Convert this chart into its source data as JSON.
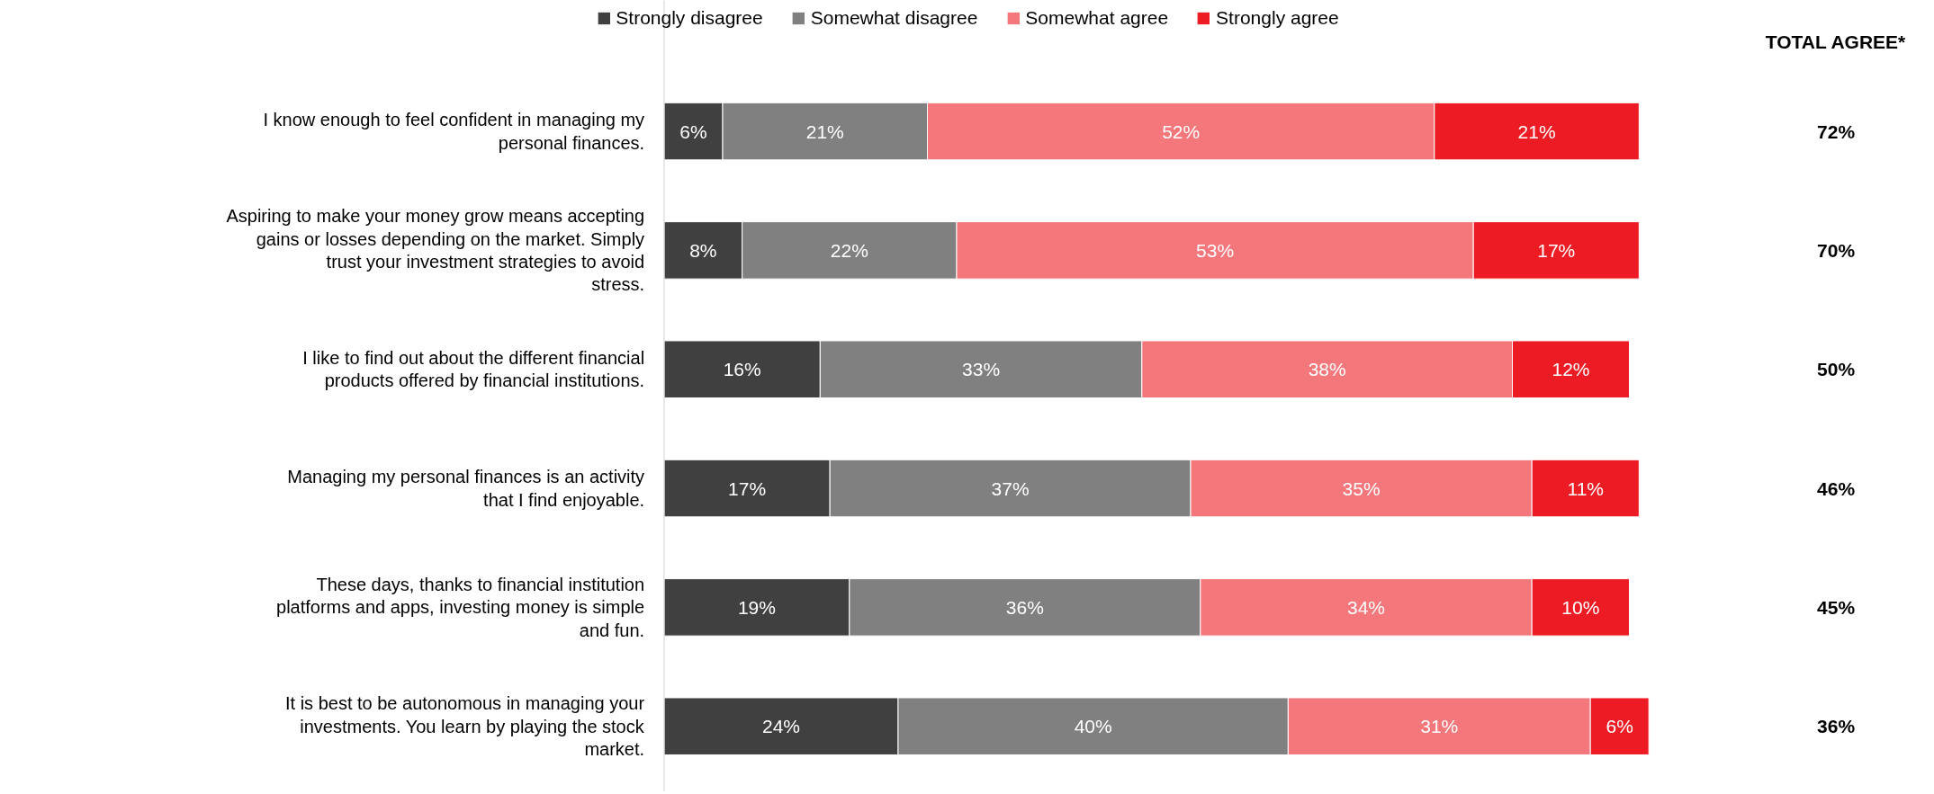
{
  "chart_data": {
    "type": "bar",
    "orientation": "horizontal",
    "stacked": true,
    "grid": false,
    "legend": "top",
    "categories": [
      "I know enough to feel confident in managing my personal finances.",
      "Aspiring to make your money grow means accepting gains or losses depending on the market. Simply trust your investment strategies to avoid stress.",
      "I like to find out about the different financial products offered by financial institutions.",
      "Managing my personal finances is an activity that I find enjoyable.",
      "These days, thanks to financial institution platforms and apps, investing money is simple and fun.",
      "It is best to be autonomous in managing your investments. You learn by playing the stock market."
    ],
    "series": [
      {
        "name": "Strongly disagree",
        "color": "#404040",
        "values": [
          6,
          8,
          16,
          17,
          19,
          24
        ],
        "value_labels": [
          "6%",
          "8%",
          "16%",
          "17%",
          "19%",
          "24%"
        ]
      },
      {
        "name": "Somewhat disagree",
        "color": "#808080",
        "values": [
          21,
          22,
          33,
          37,
          36,
          40
        ],
        "value_labels": [
          "21%",
          "22%",
          "33%",
          "37%",
          "36%",
          "40%"
        ]
      },
      {
        "name": "Somewhat agree",
        "color": "#f4777b",
        "values": [
          52,
          53,
          38,
          35,
          34,
          31
        ],
        "value_labels": [
          "52%",
          "53%",
          "38%",
          "35%",
          "34%",
          "31%"
        ]
      },
      {
        "name": "Strongly agree",
        "color": "#ed1c24",
        "values": [
          21,
          17,
          12,
          11,
          10,
          6
        ],
        "value_labels": [
          "21%",
          "17%",
          "12%",
          "11%",
          "10%",
          "6%"
        ]
      }
    ],
    "annotations": [
      "TOTAL AGREE*",
      "72%",
      "70%",
      "50%",
      "46%",
      "45%",
      "36%"
    ]
  }
}
